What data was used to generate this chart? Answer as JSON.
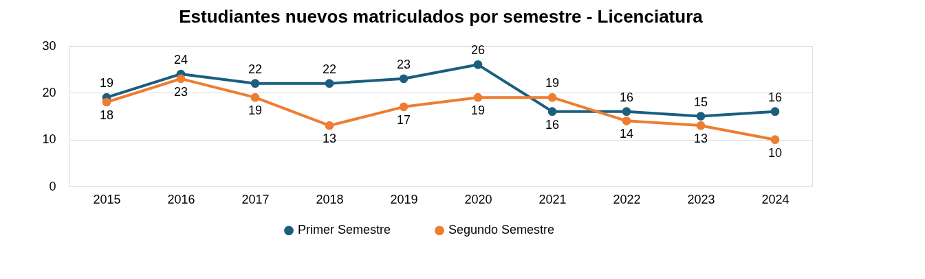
{
  "chart_data": {
    "type": "line",
    "title": "Estudiantes nuevos matriculados por semestre - Licenciatura",
    "categories": [
      "2015",
      "2016",
      "2017",
      "2018",
      "2019",
      "2020",
      "2021",
      "2022",
      "2023",
      "2024"
    ],
    "series": [
      {
        "name": "Primer Semestre",
        "color": "#1b5e7e",
        "values": [
          19,
          24,
          22,
          22,
          23,
          26,
          16,
          16,
          15,
          16
        ]
      },
      {
        "name": "Segundo Semestre",
        "color": "#ed7d31",
        "values": [
          18,
          23,
          19,
          13,
          17,
          19,
          19,
          14,
          13,
          10
        ]
      }
    ],
    "ylim": [
      0,
      30
    ],
    "yticks": [
      0,
      10,
      20,
      30
    ],
    "grid": "y",
    "legend": "bottom",
    "marker": "circle",
    "line_style": "solid",
    "data_labels": true
  }
}
